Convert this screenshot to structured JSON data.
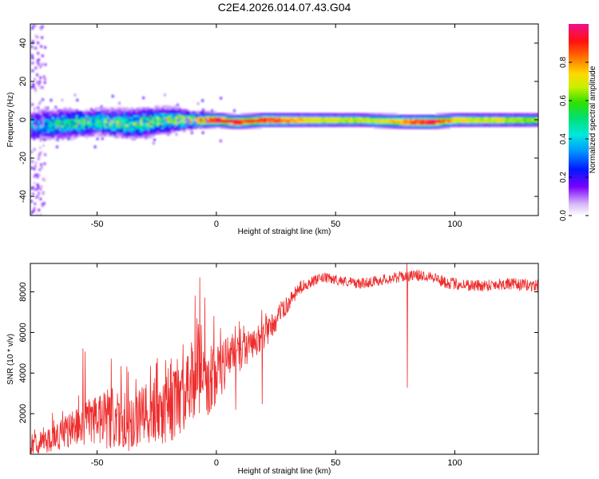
{
  "figure": {
    "title": "C2E4.2026.014.07.43.G04"
  },
  "chart_data": [
    {
      "type": "heatmap",
      "id": "spectrogram",
      "xlabel": "Height of straight line (km)",
      "ylabel": "Frequency (Hz)",
      "xlim": [
        -78,
        135
      ],
      "ylim": [
        -50,
        50
      ],
      "xticks": [
        -50,
        0,
        50,
        100
      ],
      "yticks": [
        -40,
        -20,
        0,
        20,
        40
      ],
      "colorbar": {
        "label": "Normalized spectral amplitude",
        "range": [
          0.0,
          1.0
        ],
        "ticks": [
          "0.0",
          "0.2",
          "0.4",
          "0.6",
          "0.8"
        ],
        "tick_values": [
          0.0,
          0.2,
          0.4,
          0.6,
          0.8
        ]
      },
      "ridge": [
        {
          "x": -78,
          "f": -3,
          "amp": 0.35,
          "width": 7
        },
        {
          "x": -65,
          "f": -2,
          "amp": 0.45,
          "width": 7
        },
        {
          "x": -50,
          "f": -1,
          "amp": 0.5,
          "width": 6
        },
        {
          "x": -35,
          "f": -2,
          "amp": 0.5,
          "width": 7
        },
        {
          "x": -20,
          "f": 0,
          "amp": 0.55,
          "width": 6
        },
        {
          "x": -10,
          "f": 0,
          "amp": 0.65,
          "width": 4
        },
        {
          "x": 0,
          "f": 0,
          "amp": 0.95,
          "width": 3
        },
        {
          "x": 8,
          "f": -1,
          "amp": 0.9,
          "width": 3
        },
        {
          "x": 20,
          "f": 0,
          "amp": 0.85,
          "width": 3
        },
        {
          "x": 40,
          "f": 0,
          "amp": 0.7,
          "width": 3
        },
        {
          "x": 60,
          "f": 0,
          "amp": 0.65,
          "width": 3
        },
        {
          "x": 80,
          "f": -1,
          "amp": 0.8,
          "width": 3
        },
        {
          "x": 90,
          "f": -1,
          "amp": 0.95,
          "width": 3
        },
        {
          "x": 100,
          "f": 0,
          "amp": 0.7,
          "width": 3
        },
        {
          "x": 120,
          "f": 0,
          "amp": 0.65,
          "width": 3
        },
        {
          "x": 135,
          "f": 0,
          "amp": 0.6,
          "width": 3
        }
      ]
    },
    {
      "type": "line",
      "id": "snr",
      "xlabel": "Height of straight line (km)",
      "ylabel": "SNR (10 * v/v)",
      "xlim": [
        -78,
        135
      ],
      "ylim": [
        0,
        9400
      ],
      "xticks": [
        -50,
        0,
        50,
        100
      ],
      "yticks": [
        2000,
        4000,
        6000,
        8000
      ],
      "line_color": "#ee2c2c",
      "series": [
        {
          "name": "SNR",
          "trend_x": [
            -78,
            -70,
            -60,
            -50,
            -40,
            -30,
            -20,
            -12,
            -8,
            -4,
            0,
            5,
            10,
            15,
            20,
            25,
            30,
            35,
            40,
            45,
            50,
            60,
            70,
            80,
            90,
            95,
            100,
            110,
            120,
            135
          ],
          "trend_y": [
            300,
            700,
            1300,
            1800,
            1500,
            1800,
            2300,
            2800,
            4500,
            3500,
            3800,
            4700,
            5000,
            5400,
            5800,
            6600,
            7400,
            8200,
            8500,
            8700,
            8600,
            8400,
            8600,
            8800,
            8800,
            8500,
            8400,
            8300,
            8400,
            8300
          ],
          "noise_x": [
            -78,
            -60,
            -45,
            -30,
            -15,
            -8,
            0,
            10,
            20,
            30,
            40,
            60,
            100,
            135
          ],
          "noise_amp": [
            400,
            900,
            1500,
            1600,
            1800,
            2400,
            1500,
            900,
            700,
            400,
            250,
            250,
            300,
            300
          ],
          "peaks": [
            {
              "x": -56,
              "y": 5200
            },
            {
              "x": -55,
              "y": 5050
            },
            {
              "x": -44,
              "y": 4700
            },
            {
              "x": -25,
              "y": 4500
            },
            {
              "x": -14,
              "y": 5400
            },
            {
              "x": -9,
              "y": 7800
            },
            {
              "x": -7,
              "y": 8700
            },
            {
              "x": -1,
              "y": 6800
            },
            {
              "x": 8,
              "y": 6300
            },
            {
              "x": 19,
              "y": 7100
            },
            {
              "x": 80,
              "y": 9400
            }
          ]
        }
      ]
    }
  ]
}
